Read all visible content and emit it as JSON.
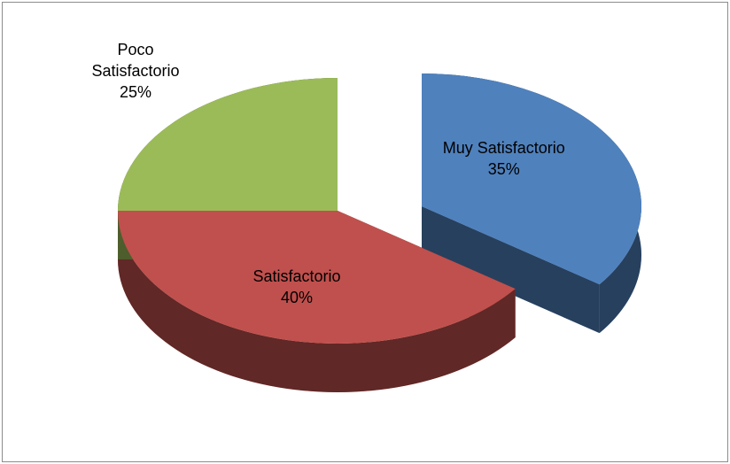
{
  "chart_data": {
    "type": "pie",
    "categories": [
      "Muy Satisfactorio",
      "Satisfactorio",
      "Poco Satisfactorio"
    ],
    "values": [
      35,
      40,
      25
    ],
    "value_labels": [
      "35%",
      "40%",
      "25%"
    ],
    "colors": [
      "#4f81bd",
      "#c0504d",
      "#9bbb59"
    ],
    "exploded": [
      true,
      false,
      false
    ]
  }
}
